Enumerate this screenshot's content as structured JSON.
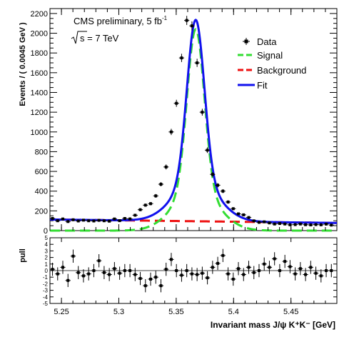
{
  "chart_data": [
    {
      "type": "scatter",
      "title": "",
      "annotations": {
        "experiment": "CMS preliminary, 5 fb",
        "experiment_sup": "-1",
        "energy": "s = 7 TeV"
      },
      "ylabel": "Events / ( 0.0045 GeV )",
      "xlabel": "Invariant mass J/ψ K⁺K⁻ [GeV]",
      "xlim": [
        5.24,
        5.49
      ],
      "ylim": [
        0,
        2250
      ],
      "yticks": [
        0,
        200,
        400,
        600,
        800,
        1000,
        1200,
        1400,
        1600,
        1800,
        2000,
        2200
      ],
      "xticks": [
        5.25,
        5.3,
        5.35,
        5.4,
        5.45
      ],
      "legend": {
        "placement": "top-right",
        "entries": [
          {
            "label": "Data",
            "style": "marker",
            "color": "#000000"
          },
          {
            "label": "Signal",
            "style": "dashed",
            "color": "#33dd33"
          },
          {
            "label": "Background",
            "style": "dashed",
            "color": "#ee1111"
          },
          {
            "label": "Fit",
            "style": "solid",
            "color": "#1111ee"
          }
        ]
      },
      "model": {
        "peak_mass": 5.367,
        "signal_amplitude": 2040,
        "signal_core_width": 0.0075,
        "signal_tail_width": 0.019,
        "signal_tail_fraction": 0.2,
        "background_level": 95,
        "background_slope": -140
      },
      "series": [
        {
          "name": "Data",
          "x": [
            5.2422,
            5.2467,
            5.2512,
            5.2557,
            5.2602,
            5.2647,
            5.2692,
            5.2737,
            5.2782,
            5.2827,
            5.2872,
            5.2917,
            5.2962,
            5.3007,
            5.3052,
            5.3097,
            5.3142,
            5.3187,
            5.3232,
            5.3277,
            5.3322,
            5.3367,
            5.3412,
            5.3457,
            5.3502,
            5.3547,
            5.3592,
            5.3637,
            5.3682,
            5.3727,
            5.3772,
            5.3817,
            5.3862,
            5.3907,
            5.3952,
            5.3997,
            5.4042,
            5.4087,
            5.4132,
            5.4177,
            5.4222,
            5.4267,
            5.4312,
            5.4357,
            5.4402,
            5.4447,
            5.4492,
            5.4537,
            5.4582,
            5.4627,
            5.4672,
            5.4717,
            5.4762,
            5.4807,
            5.4852
          ],
          "y": [
            123,
            100,
            118,
            92,
            110,
            98,
            106,
            100,
            98,
            104,
            100,
            96,
            118,
            101,
            123,
            119,
            156,
            212,
            258,
            273,
            352,
            470,
            645,
            1000,
            1290,
            1750,
            2130,
            2075,
            1700,
            1200,
            815,
            570,
            460,
            400,
            290,
            222,
            170,
            160,
            133,
            99,
            84,
            89,
            78,
            67,
            72,
            67,
            59,
            61,
            67,
            60,
            58,
            61,
            59,
            66,
            56
          ]
        }
      ]
    },
    {
      "type": "scatter",
      "ylabel": "pull",
      "xlim": [
        5.24,
        5.49
      ],
      "ylim": [
        -5,
        5
      ],
      "yticks": [
        -5,
        -4,
        -3,
        -2,
        -1,
        0,
        1,
        2,
        3,
        4,
        5
      ],
      "xticks": [
        5.25,
        5.3,
        5.35,
        5.4,
        5.45
      ],
      "series": [
        {
          "name": "pull",
          "x": [
            5.2422,
            5.2467,
            5.2512,
            5.2557,
            5.2602,
            5.2647,
            5.2692,
            5.2737,
            5.2782,
            5.2827,
            5.2872,
            5.2917,
            5.2962,
            5.3007,
            5.3052,
            5.3097,
            5.3142,
            5.3187,
            5.3232,
            5.3277,
            5.3322,
            5.3367,
            5.3412,
            5.3457,
            5.3502,
            5.3547,
            5.3592,
            5.3637,
            5.3682,
            5.3727,
            5.3772,
            5.3817,
            5.3862,
            5.3907,
            5.3952,
            5.3997,
            5.4042,
            5.4087,
            5.4132,
            5.4177,
            5.4222,
            5.4267,
            5.4312,
            5.4357,
            5.4402,
            5.4447,
            5.4492,
            5.4537,
            5.4582,
            5.4627,
            5.4672,
            5.4717,
            5.4762,
            5.4807,
            5.4852
          ],
          "y": [
            0.2,
            -0.5,
            0.5,
            -1.5,
            2.2,
            -0.3,
            -0.8,
            -0.5,
            0.0,
            1.5,
            -0.3,
            -0.6,
            0.3,
            -0.4,
            0.0,
            0.0,
            -0.6,
            -1.2,
            -2.3,
            -1.3,
            -1.0,
            -2.3,
            0.2,
            1.7,
            0.0,
            -0.7,
            0.0,
            -0.5,
            -0.6,
            -0.4,
            -1.1,
            0.5,
            1.1,
            2.3,
            -0.5,
            -1.3,
            0.3,
            -0.6,
            0.5,
            -0.3,
            0.0,
            1.0,
            0.5,
            1.8,
            0.0,
            1.4,
            0.6,
            -0.5,
            0.3,
            -0.6,
            0.5,
            -0.4,
            -0.8,
            0.0,
            0.0
          ],
          "yerr": 1.0
        }
      ]
    }
  ]
}
